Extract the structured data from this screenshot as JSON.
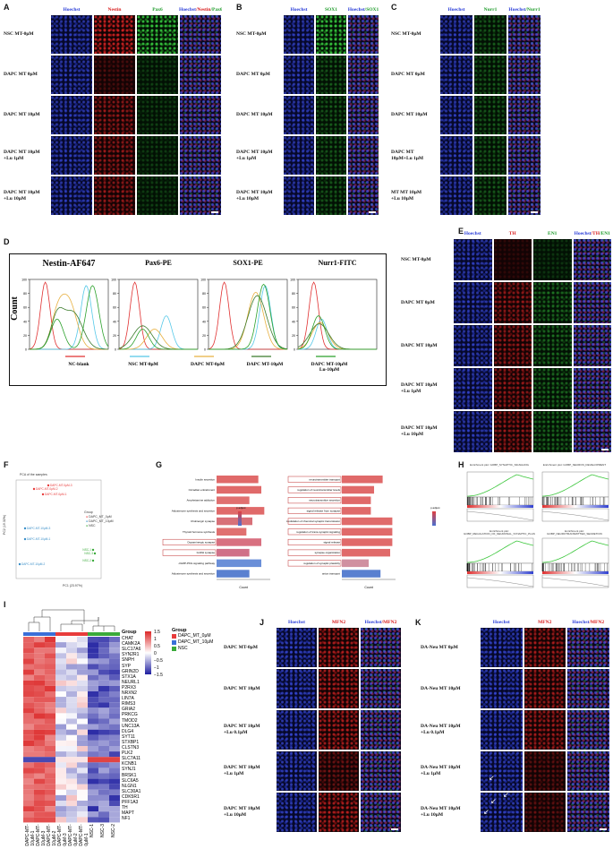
{
  "colors": {
    "hoechst": "#2a3dd8",
    "red": "#d81c1c",
    "green": "#1d9b2a",
    "merge_blue": "#0b1a6e",
    "merge_red": "#5a0a12",
    "merge_green": "#083a10",
    "merge_mix": "#3a1a3a"
  },
  "panelA": {
    "label": "A",
    "channels": [
      {
        "name": "Hoechst",
        "color": "#2a3dd8"
      },
      {
        "name": "Nestin",
        "color": "#d81c1c"
      },
      {
        "name": "Pax6",
        "color": "#1d9b2a"
      }
    ],
    "merge": [
      "Hoechst",
      "/Nestin",
      "/Pax6"
    ],
    "rows": [
      [
        "NSC MT-0μM"
      ],
      [
        "DAPC MT 0μM"
      ],
      [
        "DAPC MT 10μM"
      ],
      [
        "DAPC MT 10μM",
        "+Lu 1μM"
      ],
      [
        "DAPC MT 10μM",
        "+Lu 10μM"
      ]
    ]
  },
  "panelB": {
    "label": "B",
    "channels": [
      {
        "name": "Hoechst",
        "color": "#2a3dd8"
      },
      {
        "name": "SOX1",
        "color": "#1d9b2a"
      }
    ],
    "merge": [
      "Hoechst",
      "/SOX1"
    ],
    "rows": [
      [
        "NSC MT-0μM"
      ],
      [
        "DAPC MT 0μM"
      ],
      [
        "DAPC MT 10μM"
      ],
      [
        "DAPC MT 10μM",
        "+Lu 1μM"
      ],
      [
        "DAPC MT 10μM",
        "+Lu 10μM"
      ]
    ]
  },
  "panelC": {
    "label": "C",
    "channels": [
      {
        "name": "Hoechst",
        "color": "#2a3dd8"
      },
      {
        "name": "Nurr1",
        "color": "#1d9b2a"
      }
    ],
    "merge": [
      "Hoechst",
      "/Nurr1"
    ],
    "rows": [
      [
        "NSC MT-0μM"
      ],
      [
        "DAPC MT 0μM"
      ],
      [
        "DAPC MT 10μM"
      ],
      [
        "DAPC MT",
        "10μM+Lu 1μM"
      ],
      [
        "MT MT 10μM",
        "+Lu 10μM"
      ]
    ]
  },
  "panelD": {
    "label": "D",
    "plots": [
      "Nestin-AF647",
      "Pax6-PE",
      "SOX1-PE",
      "Nurr1-FITC"
    ],
    "ylabel": "Count",
    "legend": [
      {
        "name": "NC-blank",
        "color": "#e03030"
      },
      {
        "name": "NSC MT-0μM",
        "color": "#55c8e8"
      },
      {
        "name": "DAPC MT-0μM",
        "color": "#e8b040"
      },
      {
        "name": "DAPC MT-10μM",
        "color": "#3a7a2a"
      },
      {
        "name": "DAPC MT-10μM Lu-10μM",
        "color": "#2aa02a"
      }
    ]
  },
  "panelE": {
    "label": "E",
    "channels": [
      {
        "name": "Hoechst",
        "color": "#2a3dd8"
      },
      {
        "name": "TH",
        "color": "#d81c1c"
      },
      {
        "name": "EN1",
        "color": "#1d9b2a"
      }
    ],
    "merge": [
      "Hoechst",
      "/TH",
      "/EN1"
    ],
    "rows": [
      [
        "NSC MT-0μM"
      ],
      [
        "DAPC MT 0μM"
      ],
      [
        "DAPC MT 10μM"
      ],
      [
        "DAPC MT 10μM",
        "+Lu 1μM"
      ],
      [
        "DAPC MT 10μM",
        "+Lu 10μM"
      ]
    ]
  },
  "panelF": {
    "label": "F",
    "title": "PCA of the samples",
    "xlabel": "PC1 (23.97%)",
    "ylabel": "PC2 (19.32%)",
    "legend_title": "Group",
    "legend": [
      "DAPC_MT_0μM",
      "DAPC_MT_10μM",
      "NSC"
    ],
    "points": [
      {
        "label": "DAPC-MT-0μM-3",
        "group": "DAPC_MT_0μM"
      },
      {
        "label": "DAPC-MT-0μM-2",
        "group": "DAPC_MT_0μM"
      },
      {
        "label": "DAPC-MT-0μM-1",
        "group": "DAPC_MT_0μM"
      },
      {
        "label": "DAPC-MT-10μM-3",
        "group": "DAPC_MT_10μM"
      },
      {
        "label": "DAPC-MT-10μM-1",
        "group": "DAPC_MT_10μM"
      },
      {
        "label": "DAPC-MT-10μM-2",
        "group": "DAPC_MT_10μM"
      },
      {
        "label": "NSC-1",
        "group": "NSC"
      },
      {
        "label": "NSC-3",
        "group": "NSC"
      },
      {
        "label": "NSC-2",
        "group": "NSC"
      }
    ]
  },
  "panelG": {
    "label": "G",
    "left_terms": [
      "Insulin secretion",
      "Circadian entrainment",
      "Amphetamine addiction",
      "Aldosterone synthesis and secretion",
      "Cholinergic synapse",
      "Thyroid hormone synthesis",
      "Dopaminergic synapse",
      "GnRH synapse",
      "cGMP-PKG signaling pathway",
      "Aldosterone synthesis and secretion"
    ],
    "left_counts": [
      14,
      15,
      11,
      16,
      12,
      10,
      15,
      11,
      15,
      11
    ],
    "right_terms": [
      "neurotransmitter transport",
      "regulation of neurotransmitter levels",
      "neurotransmitter secretion",
      "signal release from synapse",
      "modulation of chemical synaptic transmission",
      "regulation of trans-synaptic signaling",
      "signal release",
      "synapse organization",
      "regulation of synaptic plasticity",
      "anion transport"
    ],
    "right_counts": [
      38,
      30,
      27,
      27,
      47,
      47,
      47,
      45,
      25,
      36
    ],
    "xlabel": "Count",
    "legend_title": "p.adjust"
  },
  "panelH": {
    "label": "H",
    "plots": [
      "Enrichment plot: GOBP_SYNAPTIC_SIGNALING",
      "Enrichment plot: GOBP_NEURON_DEVELOPMENT",
      "Enrichment plot: GOBP_REGULATION_OF_NEURONAL_SYNAPTIC_PLASTICITY",
      "Enrichment plot: GOBP_NEUROTRANSMITTER_SECRETION"
    ]
  },
  "panelI": {
    "label": "I",
    "group_title": "Group",
    "legend": [
      {
        "name": "DAPC_MT_0μM",
        "color": "#e83b3b"
      },
      {
        "name": "DAPC_MT_10μM",
        "color": "#3a6fd8"
      },
      {
        "name": "NSC",
        "color": "#3aaa3a"
      }
    ],
    "scale": [
      "1.5",
      "1",
      "0.5",
      "0",
      "−0.5",
      "−1",
      "−1.5"
    ],
    "genes": [
      "CHAT",
      "CAMK2A",
      "SLC17A6",
      "SYN2R1",
      "SNPH",
      "SYP",
      "GRIN2D",
      "STX1A",
      "NEURL1",
      "P2RX3",
      "NRXN2",
      "LIN7A",
      "RIMS3",
      "GRIA2",
      "PRKCG",
      "TMOD2",
      "UNC13A",
      "DLG4",
      "SYT11",
      "STXBP1",
      "CLSTN3",
      "PLK2",
      "SLC7A11",
      "KCNB1",
      "SYNJ1",
      "BRSK1",
      "SLC6A5",
      "NLGN1",
      "SLC30A1",
      "CDK5R1",
      "PFF1A3",
      "TH",
      "MAPT",
      "NF1"
    ],
    "samples": [
      "DAPC-MT-10μM-1",
      "DAPC-MT-10μM-3",
      "DAPC-MT-10μM-2",
      "DAPC-MT-0μM-3",
      "DAPC-MT-0μM-2",
      "DAPC-MT-0μM-1",
      "NSC-1",
      "NSC-3",
      "NSC-2"
    ],
    "sample_groups": [
      "DAPC_MT_10μM",
      "DAPC_MT_10μM",
      "DAPC_MT_10μM",
      "DAPC_MT_0μM",
      "DAPC_MT_0μM",
      "DAPC_MT_0μM",
      "NSC",
      "NSC",
      "NSC"
    ]
  },
  "panelJ": {
    "label": "J",
    "channels": [
      {
        "name": "Hoechst",
        "color": "#2a3dd8"
      },
      {
        "name": "MFN2",
        "color": "#d81c1c"
      }
    ],
    "merge": [
      "Hoechst",
      "/MFN2"
    ],
    "rows": [
      [
        "DAPC MT-0μM"
      ],
      [
        "DAPC MT 10μM"
      ],
      [
        "DAPC MT 10μM",
        "+Lu 0.1μM"
      ],
      [
        "DAPC MT 10μM",
        "+Lu 1μM"
      ],
      [
        "DAPC MT 10μM",
        "+Lu 10μM"
      ]
    ]
  },
  "panelK": {
    "label": "K",
    "channels": [
      {
        "name": "Hoechst",
        "color": "#2a3dd8"
      },
      {
        "name": "MFN2",
        "color": "#d81c1c"
      }
    ],
    "merge": [
      "Hoechst",
      "/MFN2"
    ],
    "rows": [
      [
        "DA-Neu MT 0μM"
      ],
      [
        "DA-Neu MT 10μM"
      ],
      [
        "DA-Neu MT 10μM",
        "+Lu 0.1μM"
      ],
      [
        "DA-Neu MT 10μM",
        "+Lu 1μM"
      ],
      [
        "DA-Neu MT 10μM",
        "+Lu 10μM"
      ]
    ]
  }
}
